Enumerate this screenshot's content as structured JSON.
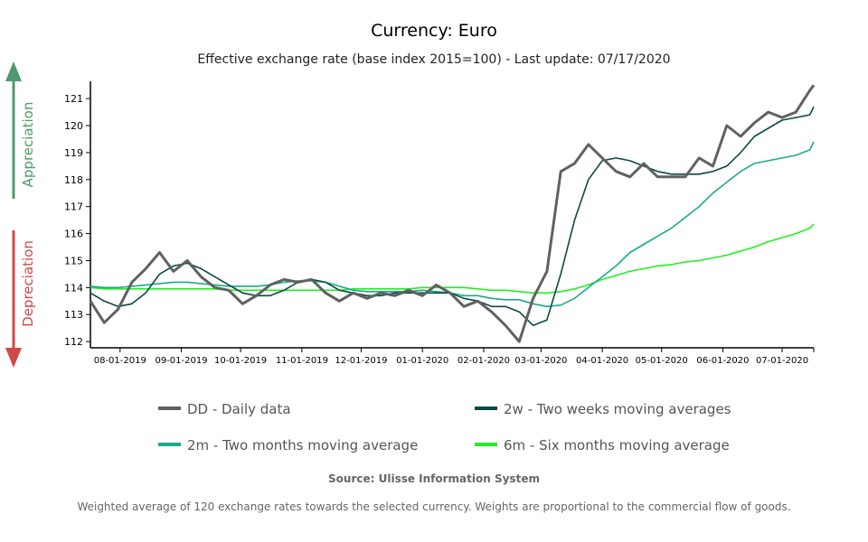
{
  "chart_data": {
    "type": "line",
    "title": "Currency: Euro",
    "subtitle": "Effective exchange rate (base index 2015=100) - Last update: 07/17/2020",
    "xlabel": "",
    "ylabel": "",
    "xlim": [
      "2019-07-17",
      "2020-07-17"
    ],
    "ylim": [
      111.77,
      121.64
    ],
    "y_ticks": [
      112,
      113,
      114,
      115,
      116,
      117,
      118,
      119,
      120,
      121
    ],
    "x_ticks": [
      {
        "date": "2019-08-01",
        "label": "08-01-2019"
      },
      {
        "date": "2019-09-01",
        "label": "09-01-2019"
      },
      {
        "date": "2019-10-01",
        "label": "10-01-2019"
      },
      {
        "date": "2019-11-01",
        "label": "11-01-2019"
      },
      {
        "date": "2019-12-01",
        "label": "12-01-2019"
      },
      {
        "date": "2020-01-01",
        "label": "01-01-2020"
      },
      {
        "date": "2020-02-01",
        "label": "02-01-2020"
      },
      {
        "date": "2020-03-01",
        "label": "03-01-2020"
      },
      {
        "date": "2020-04-01",
        "label": "04-01-2020"
      },
      {
        "date": "2020-05-01",
        "label": "05-01-2020"
      },
      {
        "date": "2020-06-01",
        "label": "06-01-2020"
      },
      {
        "date": "2020-07-01",
        "label": "07-01-2020"
      }
    ],
    "grid": false,
    "legend_placement": "bottom",
    "x": [
      "2019-07-17",
      "2019-07-24",
      "2019-07-31",
      "2019-08-07",
      "2019-08-14",
      "2019-08-21",
      "2019-08-28",
      "2019-09-04",
      "2019-09-11",
      "2019-09-18",
      "2019-09-25",
      "2019-10-02",
      "2019-10-09",
      "2019-10-16",
      "2019-10-23",
      "2019-10-30",
      "2019-11-06",
      "2019-11-13",
      "2019-11-20",
      "2019-11-27",
      "2019-12-04",
      "2019-12-11",
      "2019-12-18",
      "2019-12-25",
      "2020-01-01",
      "2020-01-08",
      "2020-01-15",
      "2020-01-22",
      "2020-01-29",
      "2020-02-05",
      "2020-02-12",
      "2020-02-19",
      "2020-02-26",
      "2020-03-04",
      "2020-03-11",
      "2020-03-18",
      "2020-03-25",
      "2020-04-01",
      "2020-04-08",
      "2020-04-15",
      "2020-04-22",
      "2020-04-29",
      "2020-05-06",
      "2020-05-13",
      "2020-05-20",
      "2020-05-27",
      "2020-06-03",
      "2020-06-10",
      "2020-06-17",
      "2020-06-24",
      "2020-07-01",
      "2020-07-08",
      "2020-07-15",
      "2020-07-17"
    ],
    "series": [
      {
        "name": "DD - Daily data",
        "color": "#616161",
        "values": [
          113.5,
          112.7,
          113.2,
          114.2,
          114.7,
          115.3,
          114.6,
          115.0,
          114.4,
          114.0,
          113.9,
          113.4,
          113.7,
          114.1,
          114.3,
          114.2,
          114.3,
          113.8,
          113.5,
          113.8,
          113.6,
          113.8,
          113.7,
          113.9,
          113.7,
          114.1,
          113.8,
          113.3,
          113.5,
          113.1,
          112.6,
          112.0,
          113.6,
          114.6,
          118.3,
          118.6,
          119.3,
          118.8,
          118.3,
          118.1,
          118.6,
          118.1,
          118.1,
          118.1,
          118.8,
          118.5,
          120.0,
          119.6,
          120.1,
          120.5,
          120.3,
          120.5,
          121.3,
          121.5
        ]
      },
      {
        "name": "2w - Two weeks moving averages",
        "color": "#0a4a45",
        "values": [
          113.8,
          113.5,
          113.3,
          113.4,
          113.8,
          114.5,
          114.8,
          114.9,
          114.7,
          114.4,
          114.1,
          113.8,
          113.7,
          113.7,
          113.9,
          114.2,
          114.3,
          114.2,
          113.9,
          113.8,
          113.7,
          113.7,
          113.8,
          113.8,
          113.8,
          113.8,
          113.8,
          113.6,
          113.5,
          113.3,
          113.3,
          113.1,
          112.6,
          112.8,
          114.5,
          116.5,
          118.0,
          118.7,
          118.8,
          118.7,
          118.5,
          118.3,
          118.2,
          118.2,
          118.2,
          118.3,
          118.5,
          119.0,
          119.6,
          119.9,
          120.2,
          120.3,
          120.4,
          120.7
        ]
      },
      {
        "name": "2m - Two months moving average",
        "color": "#1aaa8a",
        "values": [
          114.05,
          114.0,
          114.0,
          114.05,
          114.1,
          114.15,
          114.2,
          114.2,
          114.15,
          114.1,
          114.05,
          114.05,
          114.05,
          114.1,
          114.2,
          114.25,
          114.25,
          114.2,
          114.05,
          113.9,
          113.85,
          113.85,
          113.85,
          113.85,
          113.9,
          113.85,
          113.8,
          113.7,
          113.7,
          113.6,
          113.55,
          113.55,
          113.4,
          113.3,
          113.35,
          113.6,
          114.0,
          114.4,
          114.8,
          115.3,
          115.6,
          115.9,
          116.2,
          116.6,
          117.0,
          117.5,
          117.9,
          118.3,
          118.6,
          118.7,
          118.8,
          118.9,
          119.1,
          119.4
        ]
      },
      {
        "name": "6m - Six months moving average",
        "color": "#22ee22",
        "values": [
          114.0,
          113.95,
          113.95,
          113.95,
          113.95,
          113.95,
          113.95,
          113.95,
          113.95,
          113.95,
          113.9,
          113.9,
          113.9,
          113.9,
          113.9,
          113.9,
          113.9,
          113.9,
          113.9,
          113.95,
          113.95,
          113.95,
          113.95,
          113.95,
          114.0,
          114.0,
          114.0,
          114.0,
          113.95,
          113.9,
          113.9,
          113.85,
          113.8,
          113.8,
          113.85,
          113.95,
          114.1,
          114.3,
          114.45,
          114.6,
          114.7,
          114.8,
          114.85,
          114.95,
          115.0,
          115.1,
          115.2,
          115.35,
          115.5,
          115.7,
          115.85,
          116.0,
          116.2,
          116.35
        ]
      }
    ]
  },
  "side_labels": {
    "appreciation": "Appreciation",
    "appreciation_color": "#4e9a70",
    "depreciation": "Depreciation",
    "depreciation_color": "#d04848"
  },
  "source": "Source: Ulisse Information System",
  "footnote": "Weighted average of 120 exchange rates towards the selected currency. Weights are proportional to the commercial flow of goods."
}
